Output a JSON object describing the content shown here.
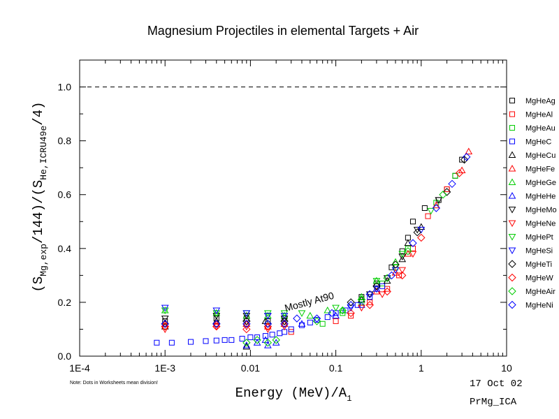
{
  "chart_data": {
    "type": "scatter",
    "title": "Magnesium Projectiles in elemental Targets + Air",
    "xlabel": "Energy (MeV)/A",
    "xlabel_sub": "1",
    "ylabel": {
      "p1": "(S",
      "p1_sub": "Mg,exp",
      "p2": "/144)/(S",
      "p2_sub": "He,ICRU49e",
      "p3": "/4)"
    },
    "x_scale": "log",
    "xlim": [
      0.0001,
      10
    ],
    "ylim": [
      0.0,
      1.1
    ],
    "x_ticks": [
      {
        "value": 0.0001,
        "label": "1E-4"
      },
      {
        "value": 0.001,
        "label": "1E-3"
      },
      {
        "value": 0.01,
        "label": "0.01"
      },
      {
        "value": 0.1,
        "label": "0.1"
      },
      {
        "value": 1,
        "label": "1"
      },
      {
        "value": 10,
        "label": "10"
      }
    ],
    "y_ticks": [
      {
        "value": 0.0,
        "label": "0.0"
      },
      {
        "value": 0.2,
        "label": "0.2"
      },
      {
        "value": 0.4,
        "label": "0.4"
      },
      {
        "value": 0.6,
        "label": "0.6"
      },
      {
        "value": 0.8,
        "label": "0.8"
      },
      {
        "value": 1.0,
        "label": "1.0"
      }
    ],
    "reference_line": {
      "y": 1.0,
      "style": "dashed"
    },
    "annotations": [
      {
        "text": "Mostly At90",
        "x": 0.05,
        "y": 0.19,
        "rotation_deg": -15
      }
    ],
    "legend_position": "right",
    "series": [
      {
        "name": "MgHeAg",
        "marker": "square",
        "color": "#000000",
        "points": [
          [
            0.001,
            0.13
          ],
          [
            0.004,
            0.14
          ],
          [
            0.009,
            0.14
          ],
          [
            0.016,
            0.13
          ],
          [
            0.025,
            0.14
          ],
          [
            0.2,
            0.22
          ],
          [
            0.3,
            0.27
          ],
          [
            0.45,
            0.33
          ],
          [
            0.6,
            0.39
          ],
          [
            0.7,
            0.44
          ],
          [
            0.8,
            0.5
          ],
          [
            1.1,
            0.55
          ],
          [
            1.6,
            0.58
          ],
          [
            2.0,
            0.62
          ],
          [
            2.5,
            0.67
          ],
          [
            3.0,
            0.73
          ]
        ]
      },
      {
        "name": "MgHeAl",
        "marker": "square",
        "color": "#ff0000",
        "points": [
          [
            0.03,
            0.09
          ],
          [
            0.1,
            0.13
          ],
          [
            0.15,
            0.15
          ],
          [
            0.25,
            0.2
          ],
          [
            0.4,
            0.25
          ],
          [
            0.55,
            0.3
          ],
          [
            0.8,
            0.4
          ],
          [
            1.2,
            0.52
          ],
          [
            2.0,
            0.62
          ]
        ]
      },
      {
        "name": "MgHeAu",
        "marker": "square",
        "color": "#00cc00",
        "points": [
          [
            0.07,
            0.12
          ],
          [
            0.12,
            0.16
          ],
          [
            0.2,
            0.2
          ],
          [
            0.35,
            0.27
          ],
          [
            0.5,
            0.33
          ],
          [
            0.7,
            0.4
          ],
          [
            1.5,
            0.57
          ],
          [
            2.5,
            0.67
          ]
        ]
      },
      {
        "name": "MgHeC",
        "marker": "square",
        "color": "#0000ff",
        "points": [
          [
            0.0008,
            0.05
          ],
          [
            0.0012,
            0.05
          ],
          [
            0.002,
            0.053
          ],
          [
            0.003,
            0.056
          ],
          [
            0.004,
            0.058
          ],
          [
            0.005,
            0.06
          ],
          [
            0.006,
            0.06
          ],
          [
            0.008,
            0.065
          ],
          [
            0.01,
            0.07
          ],
          [
            0.012,
            0.07
          ],
          [
            0.015,
            0.075
          ],
          [
            0.018,
            0.08
          ],
          [
            0.022,
            0.085
          ],
          [
            0.025,
            0.09
          ],
          [
            0.03,
            0.1
          ],
          [
            0.04,
            0.115
          ],
          [
            0.05,
            0.125
          ],
          [
            0.06,
            0.135
          ],
          [
            0.08,
            0.145
          ],
          [
            0.1,
            0.16
          ],
          [
            0.13,
            0.17
          ],
          [
            0.18,
            0.19
          ],
          [
            0.25,
            0.22
          ],
          [
            0.35,
            0.26
          ]
        ]
      },
      {
        "name": "MgHeCu",
        "marker": "triangle-up",
        "color": "#000000",
        "points": [
          [
            0.001,
            0.11
          ],
          [
            0.004,
            0.13
          ],
          [
            0.009,
            0.12
          ],
          [
            0.009,
            0.035
          ],
          [
            0.015,
            0.13
          ],
          [
            0.025,
            0.12
          ],
          [
            0.2,
            0.21
          ],
          [
            0.4,
            0.28
          ],
          [
            0.6,
            0.36
          ],
          [
            0.7,
            0.42
          ],
          [
            1.0,
            0.48
          ]
        ]
      },
      {
        "name": "MgHeFe",
        "marker": "triangle-up",
        "color": "#ff0000",
        "points": [
          [
            0.001,
            0.12
          ],
          [
            0.004,
            0.12
          ],
          [
            0.009,
            0.12
          ],
          [
            0.016,
            0.11
          ],
          [
            0.025,
            0.12
          ],
          [
            0.3,
            0.24
          ],
          [
            0.5,
            0.31
          ],
          [
            0.7,
            0.38
          ],
          [
            1.5,
            0.56
          ],
          [
            3.0,
            0.69
          ],
          [
            3.6,
            0.76
          ]
        ]
      },
      {
        "name": "MgHeGe",
        "marker": "triangle-up",
        "color": "#00cc00",
        "points": [
          [
            0.001,
            0.17
          ],
          [
            0.004,
            0.16
          ],
          [
            0.009,
            0.15
          ],
          [
            0.016,
            0.15
          ],
          [
            0.025,
            0.15
          ],
          [
            0.05,
            0.15
          ],
          [
            0.08,
            0.17
          ],
          [
            0.12,
            0.17
          ],
          [
            0.2,
            0.22
          ],
          [
            0.3,
            0.28
          ],
          [
            0.5,
            0.35
          ]
        ]
      },
      {
        "name": "MgHeHe",
        "marker": "triangle-up",
        "color": "#0000ff",
        "points": [
          [
            0.009,
            0.04
          ],
          [
            0.012,
            0.05
          ],
          [
            0.016,
            0.04
          ],
          [
            0.02,
            0.05
          ],
          [
            0.015,
            0.06
          ],
          [
            0.04,
            0.12
          ],
          [
            0.1,
            0.15
          ],
          [
            0.2,
            0.19
          ],
          [
            0.3,
            0.25
          ]
        ]
      },
      {
        "name": "MgHeMo",
        "marker": "triangle-down",
        "color": "#000000",
        "points": [
          [
            0.001,
            0.14
          ],
          [
            0.004,
            0.15
          ],
          [
            0.009,
            0.15
          ],
          [
            0.016,
            0.15
          ],
          [
            0.025,
            0.14
          ],
          [
            0.25,
            0.23
          ],
          [
            0.4,
            0.29
          ],
          [
            0.6,
            0.37
          ],
          [
            0.9,
            0.47
          ],
          [
            1.6,
            0.58
          ]
        ]
      },
      {
        "name": "MgHeNe",
        "marker": "triangle-down",
        "color": "#ff0000",
        "points": [
          [
            0.001,
            0.1
          ],
          [
            0.004,
            0.11
          ],
          [
            0.009,
            0.11
          ],
          [
            0.016,
            0.1
          ],
          [
            0.025,
            0.11
          ],
          [
            0.2,
            0.18
          ],
          [
            0.35,
            0.23
          ],
          [
            0.6,
            0.32
          ],
          [
            0.8,
            0.38
          ]
        ]
      },
      {
        "name": "MgHePt",
        "marker": "triangle-down",
        "color": "#00cc00",
        "points": [
          [
            0.001,
            0.17
          ],
          [
            0.004,
            0.16
          ],
          [
            0.009,
            0.16
          ],
          [
            0.016,
            0.16
          ],
          [
            0.025,
            0.16
          ],
          [
            0.04,
            0.16
          ],
          [
            0.1,
            0.18
          ],
          [
            0.3,
            0.28
          ],
          [
            0.6,
            0.38
          ],
          [
            1.3,
            0.54
          ]
        ]
      },
      {
        "name": "MgHeSi",
        "marker": "triangle-down",
        "color": "#0000ff",
        "points": [
          [
            0.001,
            0.18
          ],
          [
            0.004,
            0.17
          ],
          [
            0.009,
            0.16
          ],
          [
            0.016,
            0.15
          ],
          [
            0.025,
            0.15
          ],
          [
            0.15,
            0.18
          ],
          [
            0.3,
            0.25
          ],
          [
            0.5,
            0.32
          ],
          [
            1.0,
            0.47
          ]
        ]
      },
      {
        "name": "MgHeTi",
        "marker": "diamond",
        "color": "#000000",
        "points": [
          [
            0.001,
            0.12
          ],
          [
            0.004,
            0.12
          ],
          [
            0.009,
            0.13
          ],
          [
            0.016,
            0.12
          ],
          [
            0.025,
            0.13
          ],
          [
            0.15,
            0.2
          ],
          [
            0.3,
            0.26
          ],
          [
            0.5,
            0.34
          ],
          [
            0.9,
            0.46
          ],
          [
            2.0,
            0.61
          ],
          [
            3.2,
            0.73
          ]
        ]
      },
      {
        "name": "MgHeW",
        "marker": "diamond",
        "color": "#ff0000",
        "points": [
          [
            0.001,
            0.11
          ],
          [
            0.004,
            0.11
          ],
          [
            0.009,
            0.1
          ],
          [
            0.016,
            0.11
          ],
          [
            0.025,
            0.12
          ],
          [
            0.15,
            0.16
          ],
          [
            0.25,
            0.19
          ],
          [
            0.4,
            0.24
          ],
          [
            0.6,
            0.3
          ],
          [
            1.0,
            0.44
          ],
          [
            2.8,
            0.68
          ]
        ]
      },
      {
        "name": "MgHeAir",
        "marker": "diamond",
        "color": "#00cc00",
        "points": [
          [
            0.009,
            0.05
          ],
          [
            0.012,
            0.06
          ],
          [
            0.016,
            0.05
          ],
          [
            0.02,
            0.06
          ],
          [
            0.06,
            0.13
          ],
          [
            0.12,
            0.17
          ],
          [
            0.2,
            0.21
          ],
          [
            0.4,
            0.29
          ],
          [
            0.7,
            0.39
          ],
          [
            1.8,
            0.6
          ]
        ]
      },
      {
        "name": "MgHeNi",
        "marker": "diamond",
        "color": "#0000ff",
        "points": [
          [
            0.001,
            0.12
          ],
          [
            0.004,
            0.12
          ],
          [
            0.009,
            0.12
          ],
          [
            0.016,
            0.12
          ],
          [
            0.025,
            0.12
          ],
          [
            0.035,
            0.14
          ],
          [
            0.06,
            0.14
          ],
          [
            0.09,
            0.16
          ],
          [
            0.15,
            0.19
          ],
          [
            0.25,
            0.23
          ],
          [
            0.45,
            0.3
          ],
          [
            0.8,
            0.42
          ],
          [
            1.5,
            0.55
          ],
          [
            2.3,
            0.64
          ],
          [
            3.4,
            0.74
          ]
        ]
      }
    ]
  },
  "footer": {
    "note": "Note: Dots in Worksheets mean division!",
    "date": "17 Oct 02",
    "code": "PrMg_ICA"
  }
}
